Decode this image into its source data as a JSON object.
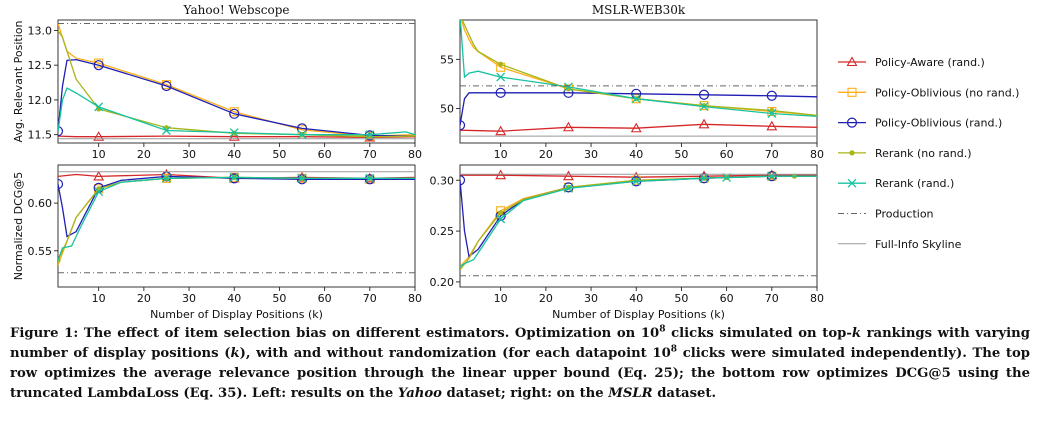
{
  "chart_data": {
    "type": "line",
    "x_label": "Number of Display Positions (k)",
    "x_ticks": [
      10,
      20,
      30,
      40,
      50,
      60,
      70,
      80
    ],
    "xlim": [
      1,
      80
    ],
    "series_styles": [
      {
        "name": "Policy-Aware (rand.)",
        "color": "#d62728",
        "marker": "triangle"
      },
      {
        "name": "Policy-Oblivious (no rand.)",
        "color": "#ffae1a",
        "marker": "square"
      },
      {
        "name": "Policy-Oblivious (rand.)",
        "color": "#1f1fb4",
        "marker": "circle"
      },
      {
        "name": "Rerank (no rand.)",
        "color": "#a8b418",
        "marker": "dot"
      },
      {
        "name": "Rerank (rand.)",
        "color": "#17c2a0",
        "marker": "x"
      },
      {
        "name": "Production",
        "color": "#666666",
        "marker": "none",
        "dash": "6,3,1,3"
      },
      {
        "name": "Full-Info Skyline",
        "color": "#999999",
        "marker": "none",
        "dash": ""
      }
    ],
    "panels": [
      {
        "id": "yahoo-relpos",
        "title": "Yahoo! Webscope",
        "ylabel_lines": [
          "Avg. Relevant Position"
        ],
        "ylim": [
          11.38,
          13.15
        ],
        "yticks": [
          11.5,
          12.0,
          12.5,
          13.0
        ],
        "ytick_labels": [
          "11.5",
          "12.0",
          "12.5",
          "13.0"
        ],
        "series": [
          {
            "name": "Policy-Aware (rand.)",
            "x": [
              1,
              5,
              10,
              25,
              40,
              55,
              70,
              80
            ],
            "y": [
              11.48,
              11.47,
              11.47,
              11.48,
              11.47,
              11.47,
              11.46,
              11.47
            ],
            "markers": [
              10,
              40,
              70
            ]
          },
          {
            "name": "Policy-Oblivious (no rand.)",
            "x": [
              1,
              2,
              3,
              5,
              10,
              25,
              40,
              55,
              70,
              80
            ],
            "y": [
              13.1,
              12.9,
              12.7,
              12.6,
              12.53,
              12.22,
              11.83,
              11.57,
              11.48,
              11.5
            ],
            "markers": [
              10,
              25,
              40,
              55,
              70
            ]
          },
          {
            "name": "Policy-Oblivious (rand.)",
            "x": [
              1,
              2,
              3,
              5,
              10,
              25,
              40,
              55,
              70,
              80
            ],
            "y": [
              11.55,
              12.2,
              12.57,
              12.58,
              12.5,
              12.2,
              11.8,
              11.59,
              11.49,
              11.48
            ],
            "markers": [
              1,
              10,
              25,
              40,
              55,
              70
            ]
          },
          {
            "name": "Rerank (no rand.)",
            "x": [
              1,
              2,
              5,
              10,
              25,
              40,
              55,
              70,
              80
            ],
            "y": [
              13.0,
              12.9,
              12.3,
              11.87,
              11.6,
              11.52,
              11.5,
              11.47,
              11.48
            ],
            "markers": [
              10,
              25,
              40,
              55,
              70
            ]
          },
          {
            "name": "Rerank (rand.)",
            "x": [
              1,
              2,
              3,
              5,
              10,
              25,
              40,
              55,
              70,
              78,
              80
            ],
            "y": [
              11.55,
              12.0,
              12.17,
              12.1,
              11.9,
              11.56,
              11.53,
              11.5,
              11.5,
              11.54,
              11.5
            ],
            "markers": [
              10,
              25,
              40,
              55,
              70
            ]
          },
          {
            "name": "Production",
            "x": [
              1,
              80
            ],
            "y": [
              13.1,
              13.1
            ],
            "markers": []
          },
          {
            "name": "Full-Info Skyline",
            "x": [
              1,
              80
            ],
            "y": [
              11.44,
              11.44
            ],
            "markers": []
          }
        ]
      },
      {
        "id": "mslr-relpos",
        "title": "MSLR-WEB30k",
        "ylabel_lines": [],
        "ylim": [
          46.5,
          59.0
        ],
        "yticks": [
          50,
          55
        ],
        "ytick_labels": [
          "50",
          "55"
        ],
        "series": [
          {
            "name": "Policy-Aware (rand.)",
            "x": [
              1,
              10,
              25,
              40,
              55,
              70,
              80
            ],
            "y": [
              47.8,
              47.7,
              48.1,
              48.0,
              48.4,
              48.2,
              48.1
            ],
            "markers": [
              10,
              25,
              40,
              55,
              70
            ]
          },
          {
            "name": "Policy-Oblivious (no rand.)",
            "x": [
              1,
              2,
              3,
              4,
              5,
              10,
              25,
              40,
              55,
              70,
              80
            ],
            "y": [
              59.5,
              58.0,
              57.0,
              56.2,
              55.8,
              54.2,
              52.0,
              51.0,
              50.3,
              49.7,
              49.3
            ],
            "markers": [
              10,
              25,
              40,
              55,
              70
            ]
          },
          {
            "name": "Policy-Oblivious (rand.)",
            "x": [
              1,
              2,
              3,
              5,
              10,
              25,
              40,
              55,
              70,
              80
            ],
            "y": [
              48.3,
              51.0,
              51.6,
              51.6,
              51.6,
              51.6,
              51.5,
              51.4,
              51.3,
              51.2
            ],
            "markers": [
              1,
              10,
              25,
              40,
              55,
              70
            ]
          },
          {
            "name": "Rerank (no rand.)",
            "x": [
              1,
              2,
              3,
              4,
              5,
              10,
              25,
              40,
              55,
              70,
              80
            ],
            "y": [
              59.5,
              58.5,
              57.5,
              56.5,
              55.8,
              54.5,
              52.0,
              51.0,
              50.3,
              49.8,
              49.3
            ],
            "markers": [
              10,
              25,
              40,
              55,
              70
            ]
          },
          {
            "name": "Rerank (rand.)",
            "x": [
              1,
              2,
              3,
              5,
              10,
              25,
              40,
              55,
              70,
              80
            ],
            "y": [
              59.5,
              53.2,
              53.6,
              53.8,
              53.2,
              52.2,
              51.0,
              50.2,
              49.5,
              49.2
            ],
            "markers": [
              10,
              25,
              40,
              55,
              70
            ]
          },
          {
            "name": "Production",
            "x": [
              1,
              80
            ],
            "y": [
              52.3,
              52.3
            ],
            "markers": []
          },
          {
            "name": "Full-Info Skyline",
            "x": [
              1,
              80
            ],
            "y": [
              47.2,
              47.2
            ],
            "markers": []
          }
        ]
      },
      {
        "id": "yahoo-dcg",
        "title": "",
        "ylabel_lines": [
          "Normalized DCG@5"
        ],
        "ylim": [
          0.512,
          0.64
        ],
        "yticks": [
          0.55,
          0.6
        ],
        "ytick_labels": [
          "0.55",
          "0.60"
        ],
        "series": [
          {
            "name": "Policy-Aware (rand.)",
            "x": [
              1,
              5,
              10,
              25,
              40,
              55,
              70,
              80
            ],
            "y": [
              0.628,
              0.63,
              0.628,
              0.63,
              0.626,
              0.627,
              0.626,
              0.627
            ],
            "markers": [
              10,
              25,
              40,
              55,
              70
            ]
          },
          {
            "name": "Policy-Oblivious (no rand.)",
            "x": [
              1,
              3,
              5,
              10,
              15,
              25,
              40,
              55,
              70,
              80
            ],
            "y": [
              0.535,
              0.56,
              0.585,
              0.615,
              0.622,
              0.626,
              0.627,
              0.626,
              0.625,
              0.625
            ],
            "markers": [
              10,
              25,
              40,
              55,
              70
            ]
          },
          {
            "name": "Policy-Oblivious (rand.)",
            "x": [
              1,
              2,
              3,
              5,
              10,
              15,
              25,
              40,
              55,
              70,
              80
            ],
            "y": [
              0.62,
              0.595,
              0.565,
              0.57,
              0.616,
              0.624,
              0.628,
              0.626,
              0.625,
              0.625,
              0.625
            ],
            "markers": [
              1,
              10,
              25,
              40,
              55,
              70
            ]
          },
          {
            "name": "Rerank (no rand.)",
            "x": [
              1,
              3,
              5,
              10,
              15,
              25,
              40,
              55,
              70,
              80
            ],
            "y": [
              0.54,
              0.56,
              0.585,
              0.615,
              0.622,
              0.626,
              0.627,
              0.626,
              0.626,
              0.626
            ],
            "markers": [
              1,
              10,
              25,
              40,
              55,
              70
            ]
          },
          {
            "name": "Rerank (rand.)",
            "x": [
              1,
              2,
              4,
              6,
              10,
              15,
              25,
              40,
              55,
              70,
              80
            ],
            "y": [
              0.54,
              0.553,
              0.555,
              0.575,
              0.612,
              0.622,
              0.626,
              0.627,
              0.626,
              0.626,
              0.626
            ],
            "markers": [
              10,
              25,
              40,
              55,
              70
            ]
          },
          {
            "name": "Production",
            "x": [
              1,
              80
            ],
            "y": [
              0.527,
              0.527
            ],
            "markers": []
          },
          {
            "name": "Full-Info Skyline",
            "x": [
              1,
              80
            ],
            "y": [
              0.633,
              0.633
            ],
            "markers": []
          }
        ]
      },
      {
        "id": "mslr-dcg",
        "title": "",
        "ylabel_lines": [],
        "ylim": [
          0.195,
          0.315
        ],
        "yticks": [
          0.2,
          0.25,
          0.3
        ],
        "ytick_labels": [
          "0.20",
          "0.25",
          "0.30"
        ],
        "series": [
          {
            "name": "Policy-Aware (rand.)",
            "x": [
              1,
              5,
              10,
              25,
              40,
              55,
              70,
              80
            ],
            "y": [
              0.305,
              0.305,
              0.305,
              0.304,
              0.303,
              0.304,
              0.305,
              0.305
            ],
            "markers": [
              10,
              25,
              40,
              55,
              70
            ]
          },
          {
            "name": "Policy-Oblivious (no rand.)",
            "x": [
              1,
              3,
              5,
              10,
              15,
              25,
              40,
              55,
              70,
              80
            ],
            "y": [
              0.215,
              0.225,
              0.24,
              0.27,
              0.282,
              0.293,
              0.3,
              0.302,
              0.304,
              0.304
            ],
            "markers": [
              10,
              25,
              40,
              55,
              70
            ]
          },
          {
            "name": "Policy-Oblivious (rand.)",
            "x": [
              1,
              2,
              3,
              5,
              10,
              15,
              25,
              40,
              55,
              70,
              80
            ],
            "y": [
              0.3,
              0.25,
              0.225,
              0.232,
              0.265,
              0.281,
              0.293,
              0.299,
              0.302,
              0.304,
              0.304
            ],
            "markers": [
              1,
              10,
              25,
              40,
              55,
              70
            ]
          },
          {
            "name": "Rerank (no rand.)",
            "x": [
              1,
              3,
              5,
              10,
              15,
              25,
              40,
              55,
              70,
              80
            ],
            "y": [
              0.212,
              0.223,
              0.24,
              0.268,
              0.281,
              0.293,
              0.3,
              0.302,
              0.304,
              0.304
            ],
            "markers": [
              10,
              25,
              40,
              55,
              60,
              70,
              75
            ]
          },
          {
            "name": "Rerank (rand.)",
            "x": [
              1,
              2,
              4,
              6,
              10,
              15,
              25,
              40,
              55,
              70,
              80
            ],
            "y": [
              0.215,
              0.218,
              0.222,
              0.235,
              0.262,
              0.28,
              0.292,
              0.299,
              0.302,
              0.304,
              0.304
            ],
            "markers": [
              10,
              25,
              40,
              55,
              60,
              70
            ]
          },
          {
            "name": "Production",
            "x": [
              1,
              80
            ],
            "y": [
              0.206,
              0.206
            ],
            "markers": []
          },
          {
            "name": "Full-Info Skyline",
            "x": [
              1,
              80
            ],
            "y": [
              0.306,
              0.306
            ],
            "markers": []
          }
        ]
      }
    ]
  },
  "caption": {
    "label": "Figure 1:",
    "part1": " The effect of item selection bias on different estimators. Optimization on 10",
    "sup1": "8",
    "part2": " clicks simulated on top-",
    "k1": "k",
    "part3": " rankings with varying number of display positions (",
    "k2": "k",
    "part4": "), with and without randomization (for each datapoint 10",
    "sup2": "8",
    "part5": " clicks were simulated independently). The top row optimizes the average relevance position through the linear upper bound (Eq. 25); the bottom row optimizes DCG@5 using the truncated LambdaLoss (Eq. 35). Left: results on the ",
    "yahoo": "Yahoo",
    "part6": " dataset; right: on the ",
    "mslr": "MSLR",
    "part7": " dataset."
  }
}
